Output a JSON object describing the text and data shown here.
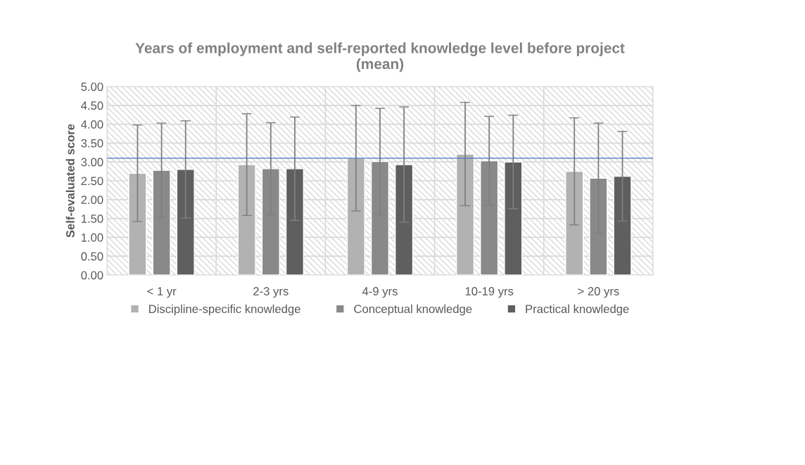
{
  "chart_data": {
    "type": "bar",
    "title": "Years of employment and self-reported knowledge level before project\n(mean)",
    "ylabel": "Self-evaluated score",
    "categories": [
      "< 1 yr",
      "2-3 yrs",
      "4-9 yrs",
      "10-19 yrs",
      "> 20 yrs"
    ],
    "series": [
      {
        "name": "Discipline-specific knowledge",
        "color": "#b2b2b2",
        "values": [
          2.7,
          2.93,
          3.1,
          3.21,
          2.75
        ],
        "errors": [
          1.28,
          1.35,
          1.4,
          1.37,
          1.42
        ]
      },
      {
        "name": "Conceptual knowledge",
        "color": "#898989",
        "values": [
          2.78,
          2.82,
          3.01,
          3.03,
          2.57
        ],
        "errors": [
          1.25,
          1.22,
          1.41,
          1.18,
          1.46
        ]
      },
      {
        "name": "Practical knowledge",
        "color": "#5f5f5f",
        "values": [
          2.8,
          2.82,
          2.93,
          3.0,
          2.62
        ],
        "errors": [
          1.29,
          1.37,
          1.53,
          1.24,
          1.19
        ]
      }
    ],
    "ylim": [
      0,
      5
    ],
    "yticks": [
      {
        "value": 0,
        "label": "0.00"
      },
      {
        "value": 0.5,
        "label": "0.50"
      },
      {
        "value": 1,
        "label": "1.00"
      },
      {
        "value": 1.5,
        "label": "1.50"
      },
      {
        "value": 2,
        "label": "2.00"
      },
      {
        "value": 2.5,
        "label": "2.50"
      },
      {
        "value": 3,
        "label": "3.00"
      },
      {
        "value": 3.5,
        "label": "3.50"
      },
      {
        "value": 4,
        "label": "4.00"
      },
      {
        "value": 4.5,
        "label": "4.50"
      },
      {
        "value": 5,
        "label": "5.00"
      }
    ],
    "ref_lines": [
      {
        "axis": "y",
        "value": 3.1,
        "color": "#4472c4"
      }
    ],
    "grid": true,
    "legend": "bottom"
  }
}
